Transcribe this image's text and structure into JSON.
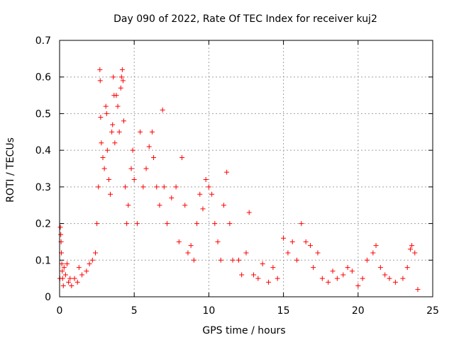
{
  "chart_data": {
    "type": "scatter",
    "title": "Day 090 of 2022, Rate Of TEC Index for receiver kuj2",
    "xlabel": "GPS time / hours",
    "ylabel": "ROTI / TECUs",
    "xlim": [
      0,
      25
    ],
    "ylim": [
      0,
      0.7
    ],
    "x_ticks": [
      0,
      5,
      10,
      15,
      20,
      25
    ],
    "y_ticks": [
      0,
      0.1,
      0.2,
      0.3,
      0.4,
      0.5,
      0.6,
      0.7
    ],
    "x_tick_labels": [
      "0",
      "5",
      "10",
      "15",
      "20",
      "25"
    ],
    "y_tick_labels": [
      "0",
      "0.1",
      "0.2",
      "0.3",
      "0.4",
      "0.5",
      "0.6",
      "0.7"
    ],
    "grid": true,
    "marker": "plus",
    "marker_color": "#ff0000",
    "series": [
      {
        "name": "ROTI",
        "points": [
          [
            0.02,
            0.05
          ],
          [
            0.05,
            0.19
          ],
          [
            0.08,
            0.17
          ],
          [
            0.1,
            0.15
          ],
          [
            0.12,
            0.12
          ],
          [
            0.15,
            0.09
          ],
          [
            0.18,
            0.07
          ],
          [
            0.2,
            0.05
          ],
          [
            0.25,
            0.03
          ],
          [
            0.3,
            0.08
          ],
          [
            0.4,
            0.06
          ],
          [
            0.5,
            0.09
          ],
          [
            0.6,
            0.04
          ],
          [
            0.7,
            0.05
          ],
          [
            0.8,
            0.03
          ],
          [
            1.0,
            0.05
          ],
          [
            1.2,
            0.04
          ],
          [
            1.3,
            0.08
          ],
          [
            1.5,
            0.06
          ],
          [
            1.8,
            0.07
          ],
          [
            2.0,
            0.09
          ],
          [
            2.2,
            0.1
          ],
          [
            2.4,
            0.12
          ],
          [
            2.5,
            0.2
          ],
          [
            2.6,
            0.3
          ],
          [
            2.7,
            0.62
          ],
          [
            2.72,
            0.59
          ],
          [
            2.75,
            0.49
          ],
          [
            2.8,
            0.42
          ],
          [
            2.9,
            0.38
          ],
          [
            3.0,
            0.35
          ],
          [
            3.1,
            0.52
          ],
          [
            3.15,
            0.5
          ],
          [
            3.2,
            0.4
          ],
          [
            3.3,
            0.32
          ],
          [
            3.4,
            0.28
          ],
          [
            3.5,
            0.45
          ],
          [
            3.55,
            0.47
          ],
          [
            3.6,
            0.6
          ],
          [
            3.65,
            0.55
          ],
          [
            3.7,
            0.42
          ],
          [
            3.8,
            0.55
          ],
          [
            3.9,
            0.52
          ],
          [
            4.0,
            0.45
          ],
          [
            4.1,
            0.57
          ],
          [
            4.15,
            0.6
          ],
          [
            4.2,
            0.62
          ],
          [
            4.25,
            0.59
          ],
          [
            4.3,
            0.48
          ],
          [
            4.4,
            0.3
          ],
          [
            4.5,
            0.2
          ],
          [
            4.6,
            0.25
          ],
          [
            4.8,
            0.35
          ],
          [
            4.9,
            0.4
          ],
          [
            5.0,
            0.32
          ],
          [
            5.2,
            0.2
          ],
          [
            5.4,
            0.45
          ],
          [
            5.6,
            0.3
          ],
          [
            5.8,
            0.35
          ],
          [
            6.0,
            0.41
          ],
          [
            6.2,
            0.45
          ],
          [
            6.3,
            0.38
          ],
          [
            6.5,
            0.3
          ],
          [
            6.7,
            0.25
          ],
          [
            6.9,
            0.51
          ],
          [
            7.0,
            0.3
          ],
          [
            7.2,
            0.2
          ],
          [
            7.5,
            0.27
          ],
          [
            7.8,
            0.3
          ],
          [
            8.0,
            0.15
          ],
          [
            8.2,
            0.38
          ],
          [
            8.4,
            0.25
          ],
          [
            8.6,
            0.12
          ],
          [
            8.8,
            0.14
          ],
          [
            9.0,
            0.1
          ],
          [
            9.2,
            0.2
          ],
          [
            9.4,
            0.28
          ],
          [
            9.6,
            0.24
          ],
          [
            9.8,
            0.32
          ],
          [
            10.0,
            0.3
          ],
          [
            10.2,
            0.28
          ],
          [
            10.4,
            0.2
          ],
          [
            10.6,
            0.15
          ],
          [
            10.8,
            0.1
          ],
          [
            11.0,
            0.25
          ],
          [
            11.2,
            0.34
          ],
          [
            11.4,
            0.2
          ],
          [
            11.6,
            0.1
          ],
          [
            12.0,
            0.1
          ],
          [
            12.2,
            0.06
          ],
          [
            12.5,
            0.12
          ],
          [
            12.7,
            0.23
          ],
          [
            13.0,
            0.06
          ],
          [
            13.3,
            0.05
          ],
          [
            13.6,
            0.09
          ],
          [
            14.0,
            0.04
          ],
          [
            14.3,
            0.08
          ],
          [
            14.6,
            0.05
          ],
          [
            15.0,
            0.16
          ],
          [
            15.3,
            0.12
          ],
          [
            15.6,
            0.15
          ],
          [
            15.9,
            0.1
          ],
          [
            16.2,
            0.2
          ],
          [
            16.5,
            0.15
          ],
          [
            16.8,
            0.14
          ],
          [
            17.0,
            0.08
          ],
          [
            17.3,
            0.12
          ],
          [
            17.6,
            0.05
          ],
          [
            18.0,
            0.04
          ],
          [
            18.3,
            0.07
          ],
          [
            18.6,
            0.05
          ],
          [
            19.0,
            0.06
          ],
          [
            19.3,
            0.08
          ],
          [
            19.6,
            0.07
          ],
          [
            20.0,
            0.03
          ],
          [
            20.3,
            0.05
          ],
          [
            20.6,
            0.1
          ],
          [
            21.0,
            0.12
          ],
          [
            21.2,
            0.14
          ],
          [
            21.5,
            0.08
          ],
          [
            21.8,
            0.06
          ],
          [
            22.1,
            0.05
          ],
          [
            22.5,
            0.04
          ],
          [
            23.0,
            0.05
          ],
          [
            23.3,
            0.08
          ],
          [
            23.5,
            0.13
          ],
          [
            23.6,
            0.14
          ],
          [
            23.8,
            0.12
          ],
          [
            24.0,
            0.02
          ]
        ]
      }
    ]
  }
}
